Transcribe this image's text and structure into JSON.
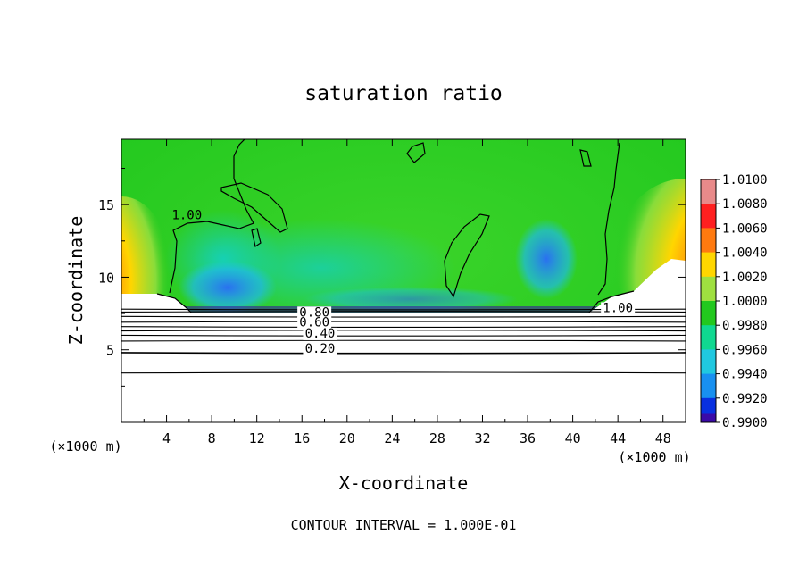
{
  "chart_data": {
    "type": "heatmap",
    "title": "saturation ratio",
    "xlabel": "X-coordinate",
    "ylabel": "Z-coordinate",
    "x_unit": "(×1000 m)",
    "x_unit_bottom": "(×1000 m)",
    "xlim": [
      0,
      50
    ],
    "ylim": [
      0,
      19.5
    ],
    "x_ticks": [
      "4",
      "8",
      "12",
      "16",
      "20",
      "24",
      "28",
      "32",
      "36",
      "40",
      "44",
      "48"
    ],
    "y_ticks": [
      "5",
      "10",
      "15"
    ],
    "footer": "CONTOUR INTERVAL = 1.000E-01",
    "colorbar": {
      "levels": [
        "1.0100",
        "1.0080",
        "1.0060",
        "1.0040",
        "1.0020",
        "1.0000",
        "0.9980",
        "0.9960",
        "0.9940",
        "0.9920",
        "0.9900"
      ],
      "colors": [
        "#e88a8a",
        "#ff2020",
        "#ff7a10",
        "#ffd600",
        "#9fe040",
        "#22c81e",
        "#10d890",
        "#20c8e0",
        "#1890f0",
        "#0830e0",
        "#3a0aa8"
      ]
    },
    "contour_labels": [
      {
        "text": "1.00",
        "x": 5.8,
        "z": 14.0
      },
      {
        "text": "0.80",
        "x": 17.1,
        "z": 7.3
      },
      {
        "text": "0.60",
        "x": 17.1,
        "z": 6.6
      },
      {
        "text": "0.40",
        "x": 17.6,
        "z": 5.85
      },
      {
        "text": "0.20",
        "x": 17.6,
        "z": 4.8
      },
      {
        "text": "1.00",
        "x": 44.0,
        "z": 7.6
      }
    ],
    "contour_levels": [
      0.1,
      0.2,
      0.3,
      0.4,
      0.5,
      0.6,
      0.7,
      0.8,
      0.9,
      1.0
    ],
    "contour_heights": [
      3.4,
      4.8,
      5.6,
      6.0,
      6.3,
      6.6,
      6.9,
      7.3,
      7.6,
      7.8
    ]
  }
}
